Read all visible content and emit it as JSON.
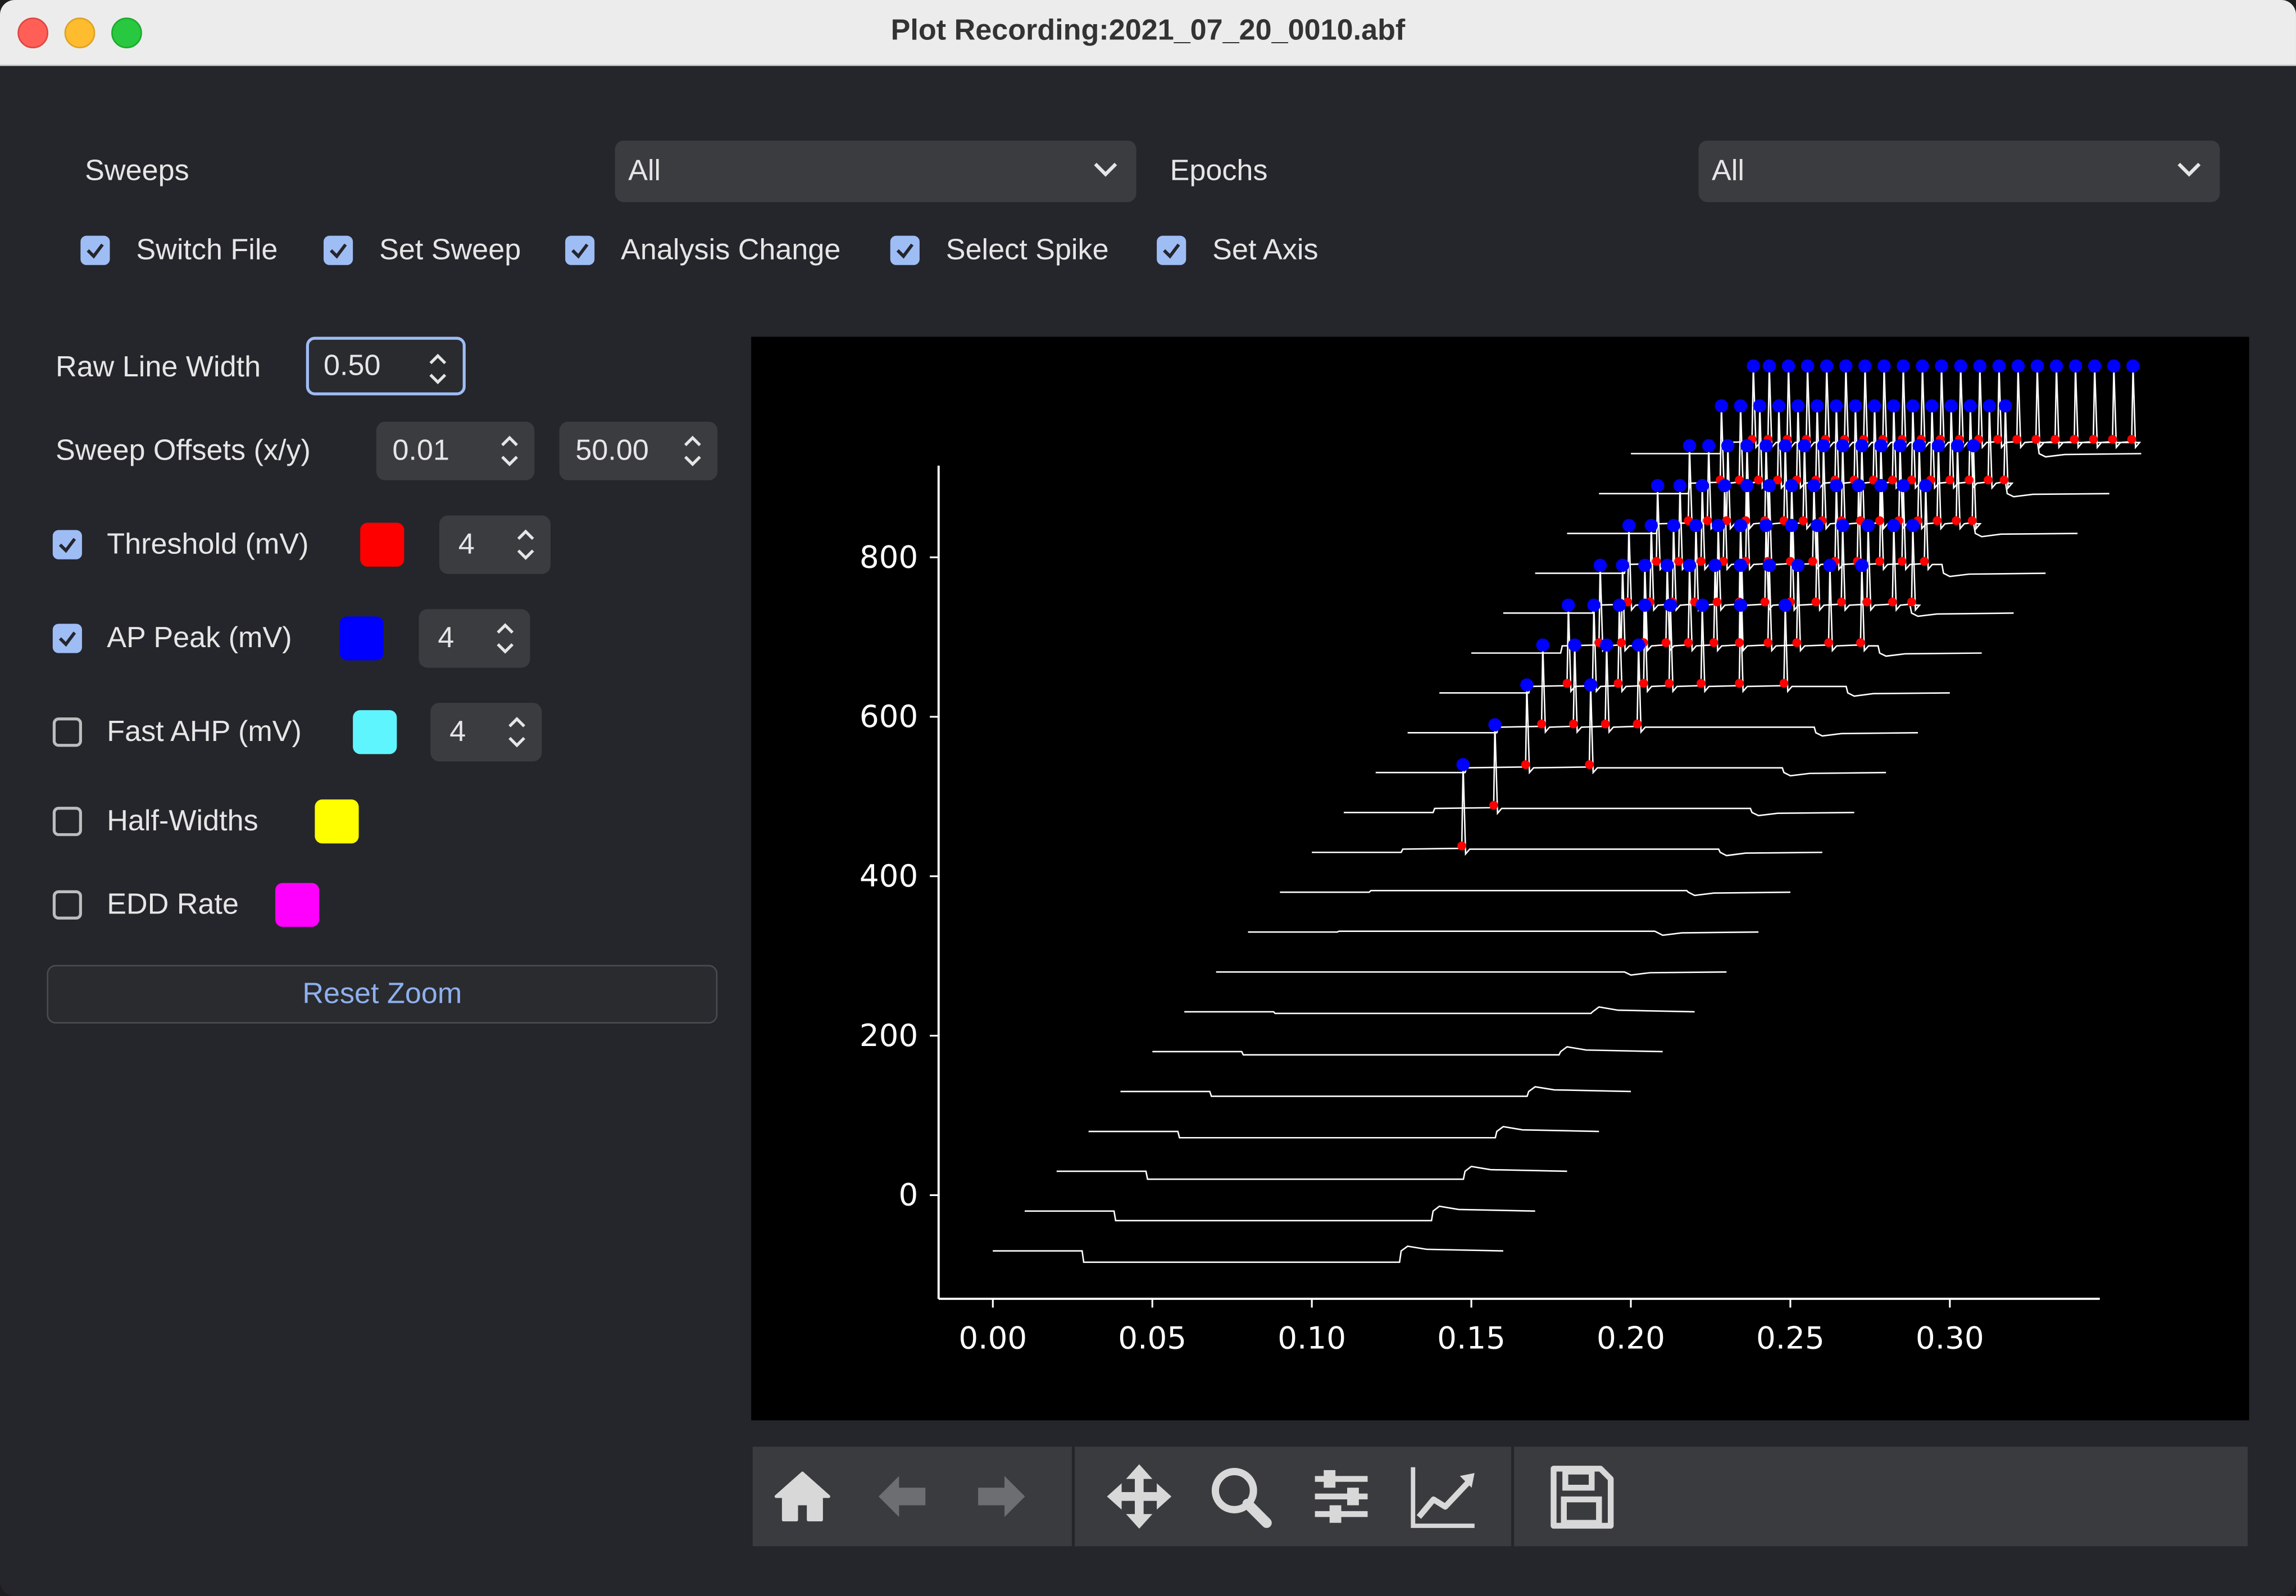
{
  "window": {
    "title": "Plot Recording:2021_07_20_0010.abf"
  },
  "top": {
    "sweeps_label": "Sweeps",
    "sweeps_value": "All",
    "epochs_label": "Epochs",
    "epochs_value": "All",
    "checkboxes": [
      {
        "label": "Switch File",
        "checked": true
      },
      {
        "label": "Set Sweep",
        "checked": true
      },
      {
        "label": "Analysis Change",
        "checked": true
      },
      {
        "label": "Select Spike",
        "checked": true
      },
      {
        "label": "Set Axis",
        "checked": true
      }
    ]
  },
  "side": {
    "raw_line_width_label": "Raw Line Width",
    "raw_line_width": "0.50",
    "sweep_offsets_label": "Sweep Offsets (x/y)",
    "sweep_offset_x": "0.01",
    "sweep_offset_y": "50.00",
    "markers": [
      {
        "label": "Threshold (mV)",
        "checked": true,
        "color": "#ff0000",
        "size": "4"
      },
      {
        "label": "AP Peak (mV)",
        "checked": true,
        "color": "#0000ff",
        "size": "4"
      },
      {
        "label": "Fast AHP (mV)",
        "checked": false,
        "color": "#5ff5ff",
        "size": "4"
      },
      {
        "label": "Half-Widths",
        "checked": false,
        "color": "#ffff00"
      },
      {
        "label": "EDD Rate",
        "checked": false,
        "color": "#ff00ff"
      }
    ],
    "reset_zoom": "Reset Zoom"
  },
  "toolbar": {
    "icons": [
      "home-icon",
      "back-arrow-icon",
      "forward-arrow-icon",
      "pan-icon",
      "zoom-icon",
      "configure-subplots-icon",
      "edit-axis-icon",
      "save-icon"
    ]
  },
  "chart_data": {
    "type": "line",
    "title": "",
    "xlabel": "",
    "ylabel": "",
    "xlim": [
      -0.017,
      0.347
    ],
    "ylim": [
      -130,
      915
    ],
    "x_ticks": [
      "0.00",
      "0.05",
      "0.10",
      "0.15",
      "0.20",
      "0.25",
      "0.30"
    ],
    "y_ticks": [
      "0",
      "200",
      "400",
      "600",
      "800"
    ],
    "sweep_offset_x": 0.01,
    "sweep_offset_y": 50,
    "sweep_count": 21,
    "step_on_s": 0.028,
    "step_off_s": 0.128,
    "sweep_duration_s": 0.16,
    "baseline_mV": -70,
    "step_mV": [
      -14,
      -12,
      -10,
      -8,
      -6,
      -4,
      -2,
      0,
      1,
      2,
      4,
      5,
      6,
      7,
      8,
      9,
      10,
      11,
      12,
      13,
      14
    ],
    "spike_times_s": [
      [],
      [],
      [],
      [],
      [],
      [],
      [],
      [],
      [],
      [],
      [
        0.047
      ],
      [
        0.047
      ],
      [
        0.047,
        0.067
      ],
      [
        0.042,
        0.052,
        0.062,
        0.072
      ],
      [
        0.04,
        0.048,
        0.056,
        0.064,
        0.072,
        0.082,
        0.094,
        0.108
      ],
      [
        0.04,
        0.047,
        0.054,
        0.061,
        0.068,
        0.076,
        0.084,
        0.093,
        0.102,
        0.112,
        0.122
      ],
      [
        0.039,
        0.046,
        0.053,
        0.06,
        0.067,
        0.074,
        0.082,
        0.09,
        0.098,
        0.106,
        0.114,
        0.122,
        0.128
      ],
      [
        0.038,
        0.045,
        0.052,
        0.059,
        0.066,
        0.073,
        0.08,
        0.087,
        0.094,
        0.101,
        0.108,
        0.115,
        0.122
      ],
      [
        0.038,
        0.044,
        0.05,
        0.056,
        0.062,
        0.068,
        0.074,
        0.08,
        0.086,
        0.092,
        0.098,
        0.104,
        0.11,
        0.116,
        0.122,
        0.127
      ],
      [
        0.038,
        0.044,
        0.05,
        0.056,
        0.062,
        0.068,
        0.074,
        0.08,
        0.086,
        0.092,
        0.098,
        0.104,
        0.11,
        0.116,
        0.122,
        0.127
      ],
      [
        0.038,
        0.043,
        0.049,
        0.055,
        0.061,
        0.067,
        0.073,
        0.079,
        0.085,
        0.091,
        0.097,
        0.103,
        0.109,
        0.115,
        0.121,
        0.127,
        0.133,
        0.139,
        0.145,
        0.151,
        0.157
      ]
    ],
    "threshold_color": "#ff0000",
    "peak_color": "#0000ff",
    "trace_color": "#ffffff",
    "grid": false
  }
}
